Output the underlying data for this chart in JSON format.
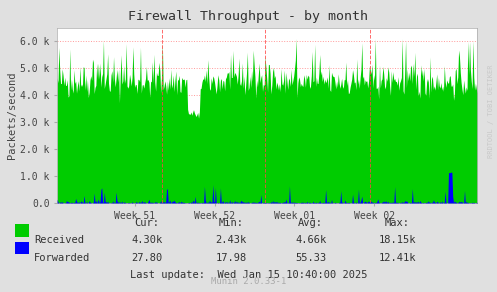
{
  "title": "Firewall Throughput - by month",
  "ylabel": "Packets/second",
  "x_tick_labels": [
    "Week 51",
    "Week 52",
    "Week 01",
    "Week 02"
  ],
  "x_tick_positions": [
    0.185,
    0.375,
    0.565,
    0.755
  ],
  "ylim": [
    0,
    6500
  ],
  "yticks": [
    0,
    1000,
    2000,
    3000,
    4000,
    5000,
    6000
  ],
  "ytick_labels": [
    "0.0",
    "1.0 k",
    "2.0 k",
    "3.0 k",
    "4.0 k",
    "5.0 k",
    "6.0 k"
  ],
  "bg_color": "#e0e0e0",
  "plot_bg_color": "#ffffff",
  "grid_color": "#ff9999",
  "received_color": "#00cc00",
  "forwarded_color": "#0000ff",
  "week_line_color": "#ff4444",
  "watermark_text": "RRDTOOL / TOBI OETIKER",
  "footer_text": "Munin 2.0.33-1",
  "last_update": "Last update:  Wed Jan 15 10:40:00 2025",
  "stats_headers": [
    "Cur:",
    "Min:",
    "Avg:",
    "Max:"
  ],
  "stats_received": [
    "4.30k",
    "2.43k",
    "4.66k",
    "18.15k"
  ],
  "stats_forwarded": [
    "27.80",
    "17.98",
    "55.33",
    "12.41k"
  ],
  "n_points": 500,
  "seed": 42
}
